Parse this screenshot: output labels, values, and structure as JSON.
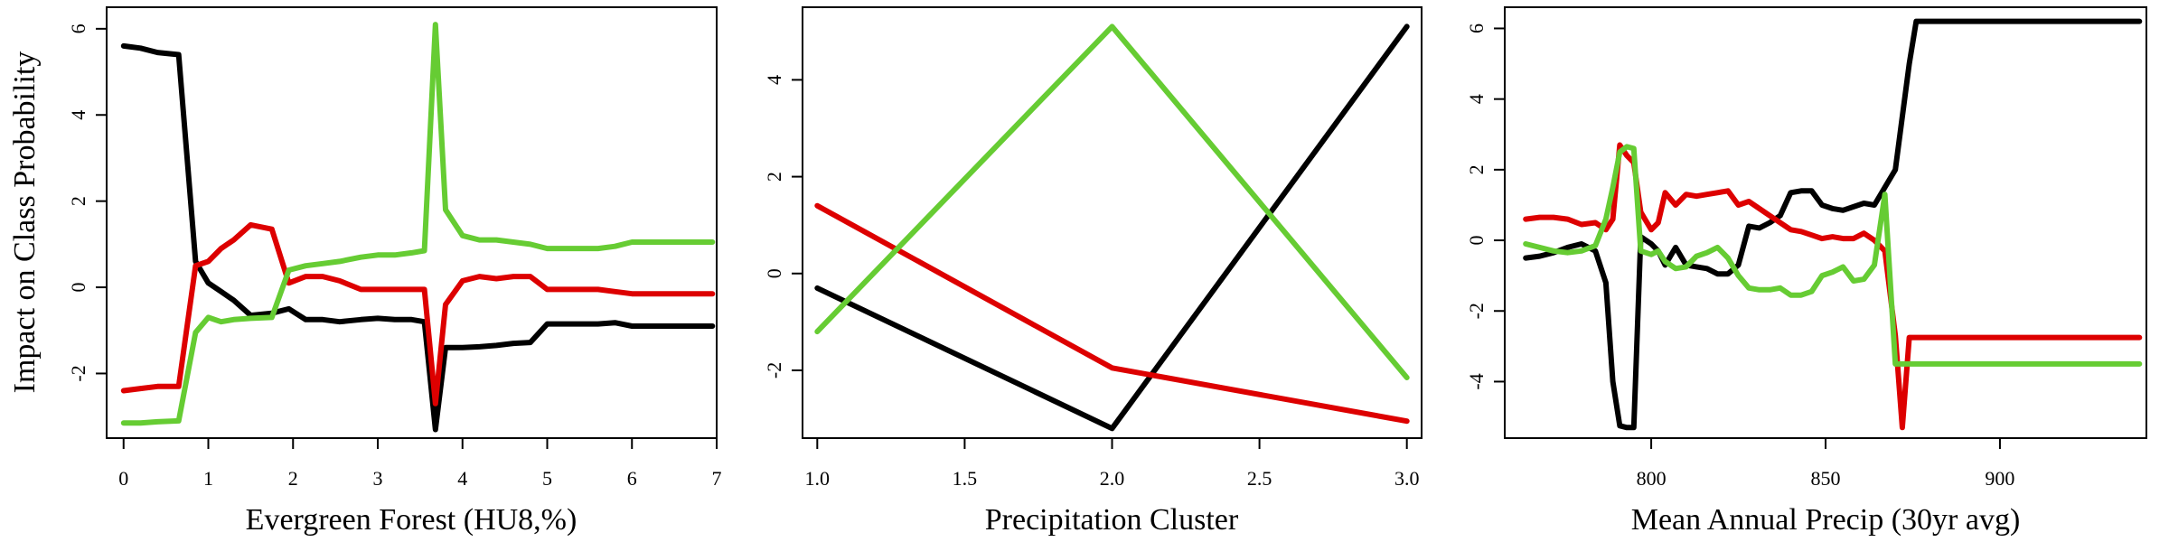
{
  "chart_data": [
    {
      "type": "line",
      "xlabel": "Evergreen Forest (HU8,%)",
      "ylabel": "Impact on Class Probability",
      "xlim": [
        -0.2,
        7.0
      ],
      "ylim": [
        -3.5,
        6.5
      ],
      "xticks": [
        0,
        1,
        2,
        3,
        4,
        5,
        6,
        7
      ],
      "yticks": [
        -2,
        0,
        2,
        4,
        6
      ],
      "grid": false,
      "series": [
        {
          "color": "#000000",
          "x": [
            0,
            0.2,
            0.4,
            0.65,
            0.85,
            1.0,
            1.15,
            1.3,
            1.5,
            1.75,
            1.95,
            2.15,
            2.35,
            2.55,
            2.8,
            3.0,
            3.2,
            3.4,
            3.55,
            3.68,
            3.8,
            4.0,
            4.2,
            4.4,
            4.6,
            4.8,
            5.0,
            5.2,
            5.4,
            5.6,
            5.8,
            6.0,
            6.2,
            6.4,
            6.6,
            6.8,
            6.95
          ],
          "y": [
            5.6,
            5.55,
            5.45,
            5.4,
            0.6,
            0.1,
            -0.1,
            -0.3,
            -0.65,
            -0.6,
            -0.5,
            -0.75,
            -0.75,
            -0.8,
            -0.75,
            -0.72,
            -0.75,
            -0.75,
            -0.8,
            -3.3,
            -1.4,
            -1.4,
            -1.38,
            -1.35,
            -1.3,
            -1.28,
            -0.85,
            -0.85,
            -0.85,
            -0.85,
            -0.82,
            -0.9,
            -0.9,
            -0.9,
            -0.9,
            -0.9,
            -0.9
          ]
        },
        {
          "color": "#dd0000",
          "x": [
            0,
            0.2,
            0.4,
            0.65,
            0.85,
            1.0,
            1.15,
            1.3,
            1.5,
            1.75,
            1.95,
            2.15,
            2.35,
            2.55,
            2.8,
            3.0,
            3.2,
            3.4,
            3.55,
            3.68,
            3.8,
            4.0,
            4.2,
            4.4,
            4.6,
            4.8,
            5.0,
            5.2,
            5.4,
            5.6,
            5.8,
            6.0,
            6.2,
            6.4,
            6.6,
            6.8,
            6.95
          ],
          "y": [
            -2.4,
            -2.35,
            -2.3,
            -2.3,
            0.5,
            0.6,
            0.9,
            1.1,
            1.45,
            1.35,
            0.1,
            0.25,
            0.25,
            0.15,
            -0.05,
            -0.05,
            -0.05,
            -0.05,
            -0.05,
            -2.7,
            -0.4,
            0.15,
            0.25,
            0.2,
            0.25,
            0.25,
            -0.05,
            -0.05,
            -0.05,
            -0.05,
            -0.1,
            -0.15,
            -0.15,
            -0.15,
            -0.15,
            -0.15,
            -0.15
          ]
        },
        {
          "color": "#66cc33",
          "x": [
            0,
            0.2,
            0.4,
            0.65,
            0.85,
            1.0,
            1.15,
            1.3,
            1.5,
            1.75,
            1.95,
            2.15,
            2.35,
            2.55,
            2.8,
            3.0,
            3.2,
            3.4,
            3.55,
            3.68,
            3.8,
            4.0,
            4.2,
            4.4,
            4.6,
            4.8,
            5.0,
            5.2,
            5.4,
            5.6,
            5.8,
            6.0,
            6.2,
            6.4,
            6.6,
            6.8,
            6.95
          ],
          "y": [
            -3.15,
            -3.15,
            -3.12,
            -3.1,
            -1.05,
            -0.7,
            -0.8,
            -0.75,
            -0.72,
            -0.7,
            0.4,
            0.5,
            0.55,
            0.6,
            0.7,
            0.75,
            0.75,
            0.8,
            0.85,
            6.1,
            1.8,
            1.2,
            1.1,
            1.1,
            1.05,
            1.0,
            0.9,
            0.9,
            0.9,
            0.9,
            0.95,
            1.05,
            1.05,
            1.05,
            1.05,
            1.05,
            1.05
          ]
        }
      ]
    },
    {
      "type": "line",
      "xlabel": "Precipitation Cluster",
      "ylabel": "",
      "xlim": [
        0.95,
        3.05
      ],
      "ylim": [
        -3.4,
        5.5
      ],
      "xticks": [
        "1.0",
        "1.5",
        "2.0",
        "2.5",
        "3.0"
      ],
      "yticks": [
        -2,
        0,
        2,
        4
      ],
      "grid": false,
      "series": [
        {
          "color": "#000000",
          "x": [
            1,
            2,
            3
          ],
          "y": [
            -0.3,
            -3.2,
            5.1
          ]
        },
        {
          "color": "#dd0000",
          "x": [
            1,
            2,
            3
          ],
          "y": [
            1.4,
            -1.95,
            -3.05
          ]
        },
        {
          "color": "#66cc33",
          "x": [
            1,
            2,
            3
          ],
          "y": [
            -1.2,
            5.1,
            -2.15
          ]
        }
      ]
    },
    {
      "type": "line",
      "xlabel": "Mean Annual Precip (30yr avg)",
      "ylabel": "",
      "xlim": [
        758,
        942
      ],
      "ylim": [
        -5.6,
        6.6
      ],
      "xticks": [
        800,
        850,
        900
      ],
      "yticks": [
        -4,
        -2,
        0,
        2,
        4,
        6
      ],
      "grid": false,
      "series": [
        {
          "color": "#000000",
          "x": [
            764,
            768,
            772,
            776,
            780,
            784,
            787,
            789,
            791,
            793,
            795,
            797,
            800,
            802,
            804,
            807,
            810,
            813,
            816,
            819,
            822,
            825,
            828,
            831,
            834,
            837,
            840,
            843,
            846,
            849,
            852,
            855,
            858,
            861,
            864,
            867,
            870,
            872,
            874,
            876,
            879,
            882,
            890,
            900,
            910,
            920,
            930,
            940
          ],
          "y": [
            -0.5,
            -0.45,
            -0.35,
            -0.2,
            -0.1,
            -0.3,
            -1.2,
            -4.0,
            -5.25,
            -5.3,
            -5.3,
            0.1,
            -0.1,
            -0.3,
            -0.7,
            -0.2,
            -0.7,
            -0.75,
            -0.8,
            -0.95,
            -0.95,
            -0.7,
            0.4,
            0.35,
            0.5,
            0.7,
            1.35,
            1.4,
            1.4,
            1.0,
            0.9,
            0.85,
            0.95,
            1.05,
            1.0,
            1.5,
            2.0,
            3.5,
            5.0,
            6.2,
            6.2,
            6.2,
            6.2,
            6.2,
            6.2,
            6.2,
            6.2,
            6.2
          ]
        },
        {
          "color": "#dd0000",
          "x": [
            764,
            768,
            772,
            776,
            780,
            784,
            787,
            789,
            791,
            793,
            795,
            797,
            800,
            802,
            804,
            807,
            810,
            813,
            816,
            819,
            822,
            825,
            828,
            831,
            834,
            837,
            840,
            843,
            846,
            849,
            852,
            855,
            858,
            861,
            864,
            867,
            870,
            872,
            874,
            876,
            879,
            882,
            890,
            900,
            910,
            920,
            930,
            940
          ],
          "y": [
            0.6,
            0.65,
            0.65,
            0.6,
            0.45,
            0.5,
            0.3,
            0.6,
            2.7,
            2.4,
            2.2,
            0.8,
            0.3,
            0.5,
            1.35,
            1.0,
            1.3,
            1.25,
            1.3,
            1.35,
            1.4,
            1.0,
            1.1,
            0.9,
            0.7,
            0.5,
            0.3,
            0.25,
            0.15,
            0.05,
            0.1,
            0.05,
            0.05,
            0.2,
            0.0,
            -0.3,
            -2.7,
            -5.3,
            -2.75,
            -2.75,
            -2.75,
            -2.75,
            -2.75,
            -2.75,
            -2.75,
            -2.75,
            -2.75,
            -2.75
          ]
        },
        {
          "color": "#66cc33",
          "x": [
            764,
            768,
            772,
            776,
            780,
            784,
            787,
            789,
            791,
            793,
            795,
            797,
            800,
            802,
            804,
            807,
            810,
            813,
            816,
            819,
            822,
            825,
            828,
            831,
            834,
            837,
            840,
            843,
            846,
            849,
            852,
            855,
            858,
            861,
            864,
            867,
            870,
            872,
            874,
            876,
            879,
            882,
            890,
            900,
            910,
            920,
            930,
            940
          ],
          "y": [
            -0.1,
            -0.2,
            -0.3,
            -0.35,
            -0.3,
            -0.15,
            0.6,
            1.5,
            2.5,
            2.65,
            2.6,
            -0.3,
            -0.4,
            -0.3,
            -0.6,
            -0.8,
            -0.75,
            -0.45,
            -0.35,
            -0.2,
            -0.5,
            -1.0,
            -1.35,
            -1.4,
            -1.4,
            -1.35,
            -1.55,
            -1.55,
            -1.45,
            -1.0,
            -0.9,
            -0.75,
            -1.15,
            -1.1,
            -0.7,
            1.3,
            -3.5,
            -3.5,
            -3.5,
            -3.5,
            -3.5,
            -3.5,
            -3.5,
            -3.5,
            -3.5,
            -3.5,
            -3.5,
            -3.5
          ]
        }
      ]
    }
  ]
}
